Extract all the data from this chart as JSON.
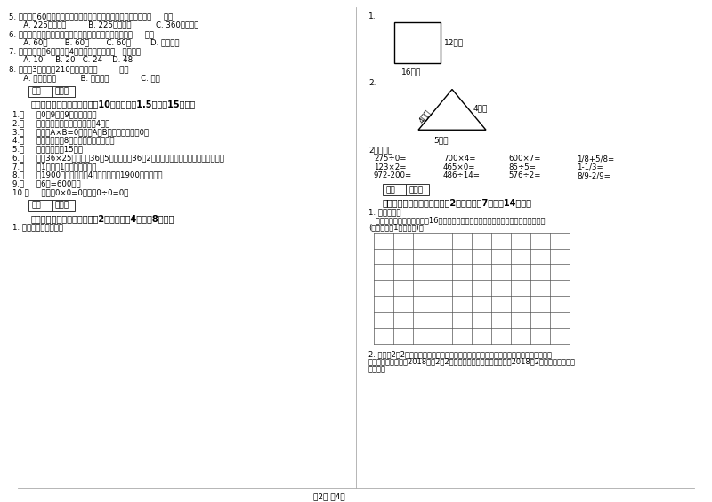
{
  "bg_color": "#ffffff",
  "left_questions": [
    [
      "5. 把一根长60厘米的铁丝围成一个正方形，这个正方形的面积是（     ）。",
      "   A. 225平方分米         B. 225平方厘米          C. 360平方厘米"
    ],
    [
      "6. 时针从上一个数字到相邻的下一个数字，经过的时间是（     ）。",
      "   A. 60秒       B. 60分       C. 60时        D. 无法确定"
    ],
    [
      "7. 一个长方形长6厘米，割4厘米，它的周长是（   ）厘米。",
      "   A. 10     B. 20   C. 24    D. 48"
    ],
    [
      "8. 爷爷化3小时行了210千米，他是（         ）。",
      "   A. 乘公共汽车          B. 骑自行车             C. 步行"
    ]
  ],
  "sec3_header": "三、仔细推敲，正确判断（入10小题，每题1.5分，入15分）。",
  "sec3_items": [
    "1.（     ）0，9里有9个十分之一。",
    "2.（     ）正方形的周长是它的边长的4倍。",
    "3.（     ）如果A×B=0，那么A和B中至少有一个是0。",
    "4.（     ）一个两位在8，积一定也是两为数。",
    "5.（     ）李老师身高15米。",
    "6.（     ）计36×25时，先把36和5相乘，再把36和2相乘，最后把两次乘积的结果相加。",
    "7.（     ）1吞铁与1吞棉花一样重。",
    "8.（     ）1900年的年份数是4的倍数，所以1900年是闰年。",
    "9.（     ）6分=600秒。",
    "10.（     ）因为0×0=0，所以0÷0=0。"
  ],
  "sec4_header": "四、看清题目，细心计算（刖2小题，每题4分，兢8分）。",
  "sec4_item": "1. 求下面图形的周长。",
  "rect_right_label": "12厘米",
  "rect_bottom_label": "16厘米",
  "tri_left_label": "4分米",
  "tri_right_label": "4分米",
  "tri_bottom_label": "5分米",
  "oral_header": "2、口算：",
  "oral_rows": [
    [
      "275÷0=",
      "700×4=",
      "600×7=",
      "1/8+5/8="
    ],
    [
      "123×2=",
      "465×0=",
      "85÷5=",
      "1-1/3="
    ],
    [
      "972-200=",
      "486÷14=",
      "576÷2=",
      "8/9-2/9="
    ]
  ],
  "sec5_header": "五、认真思考，综合能力（兢2小题，每题7分，兢14分）。",
  "sec5_item1": "1. 动手操作。",
  "sec5_item1a": "   在下面方格纸上画出面积是16平方厘米的长方形和正方形，标出相应的长、宽或边长",
  "sec5_item1b": "(每一小格为1平方厘米)。",
  "sec5_item2_lines": [
    "2. 每年的2月2日是世界湿地日。在这一天，世界各国都举行不同形式的活动来宣传保护自",
    "然资源和生态环境。2018年的2月2日是星期五，请你根据信息制作2018年2月份的月历，并回",
    "答问题。"
  ],
  "defen": "得分",
  "pingjuan": "评卷人",
  "footer": "第2页 兲4页",
  "grid_cols": 10,
  "grid_rows": 7
}
